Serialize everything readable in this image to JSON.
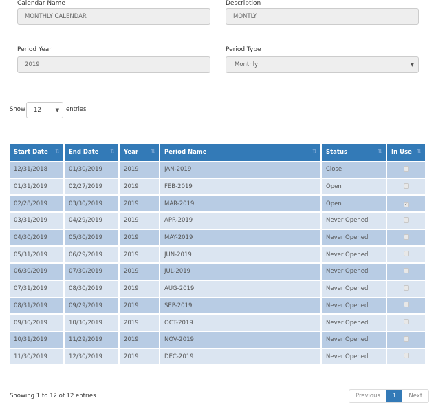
{
  "form": {
    "calendar_name": {
      "label": "Calendar Name",
      "value": "MONTHLY CALENDAR"
    },
    "description": {
      "label": "Description",
      "value": "MONTLY"
    },
    "period_year": {
      "label": "Period Year",
      "value": "2019"
    },
    "period_type": {
      "label": "Period Type",
      "value": "Monthly"
    }
  },
  "length": {
    "show": "Show",
    "value": "12",
    "entries": "entries"
  },
  "table": {
    "headers": [
      "Start Date",
      "End Date",
      "Year",
      "Period Name",
      "Status",
      "In Use"
    ],
    "rows": [
      [
        "12/31/2018",
        "01/30/2019",
        "2019",
        "JAN-2019",
        "Close",
        false
      ],
      [
        "01/31/2019",
        "02/27/2019",
        "2019",
        "FEB-2019",
        "Open",
        false
      ],
      [
        "02/28/2019",
        "03/30/2019",
        "2019",
        "MAR-2019",
        "Open",
        true
      ],
      [
        "03/31/2019",
        "04/29/2019",
        "2019",
        "APR-2019",
        "Never Opened",
        false
      ],
      [
        "04/30/2019",
        "05/30/2019",
        "2019",
        "MAY-2019",
        "Never Opened",
        false
      ],
      [
        "05/31/2019",
        "06/29/2019",
        "2019",
        "JUN-2019",
        "Never Opened",
        false
      ],
      [
        "06/30/2019",
        "07/30/2019",
        "2019",
        "JUL-2019",
        "Never Opened",
        false
      ],
      [
        "07/31/2019",
        "08/30/2019",
        "2019",
        "AUG-2019",
        "Never Opened",
        false
      ],
      [
        "08/31/2019",
        "09/29/2019",
        "2019",
        "SEP-2019",
        "Never Opened",
        false
      ],
      [
        "09/30/2019",
        "10/30/2019",
        "2019",
        "OCT-2019",
        "Never Opened",
        false
      ],
      [
        "10/31/2019",
        "11/29/2019",
        "2019",
        "NOV-2019",
        "Never Opened",
        false
      ],
      [
        "11/30/2019",
        "12/30/2019",
        "2019",
        "DEC-2019",
        "Never Opened",
        false
      ]
    ]
  },
  "footer": {
    "info": "Showing 1 to 12 of 12 entries",
    "previous": "Previous",
    "page": "1",
    "next": "Next"
  },
  "colors": {
    "header": "#337ab7",
    "row_odd": "#b8cce4",
    "row_even": "#dbe5f1"
  }
}
